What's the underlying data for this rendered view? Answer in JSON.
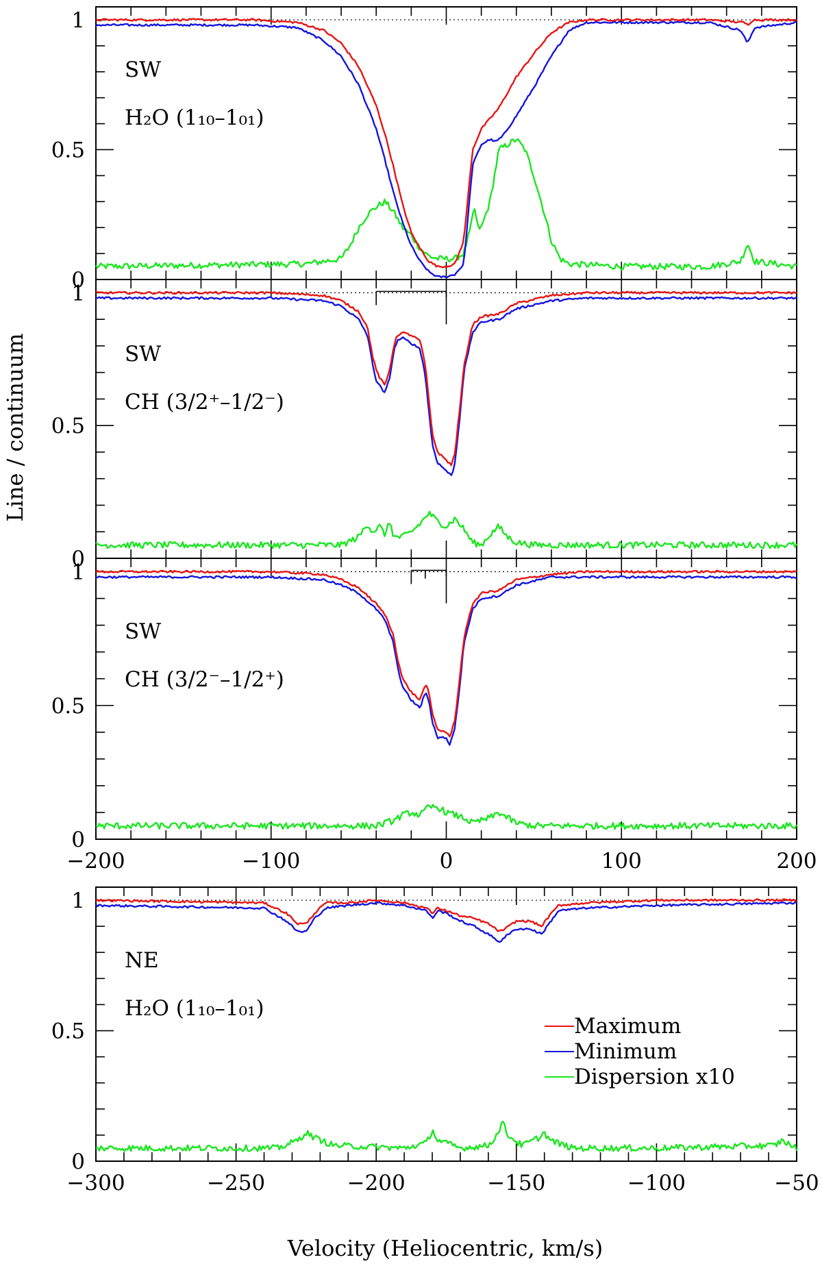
{
  "colors": {
    "maximum": "#e81414",
    "minimum": "#1414e0",
    "dispersion": "#19e61e",
    "axis": "#000000"
  },
  "y_axis_label": "Line / continuum",
  "x_axis_label": "Velocity (Heliocentric, km/s)",
  "legend": {
    "placement": "lower-right of bottom panel",
    "maximum": "Maximum",
    "minimum": "Minimum",
    "dispersion": "Dispersion x10"
  },
  "chart_data": [
    {
      "type": "line",
      "panel": "top",
      "region": "SW",
      "transition": "H₂O (1₁₀–1₀₁)",
      "xlim": [
        -200,
        200
      ],
      "ylim": [
        0,
        1.05
      ],
      "x_ticks": [
        "−200",
        "−100",
        "0",
        "100",
        "200"
      ],
      "x_tick_labels_shown": false,
      "y_ticks": [
        "0",
        "0.5",
        "1"
      ],
      "continuum_level": 1,
      "series": [
        {
          "name": "Maximum",
          "x": [
            -200,
            -110,
            -85,
            -70,
            -60,
            -50,
            -40,
            -35,
            -30,
            -25,
            -20,
            -15,
            -10,
            -5,
            0,
            5,
            10,
            15,
            20,
            30,
            40,
            50,
            60,
            70,
            80,
            100,
            150,
            170,
            172,
            175,
            200
          ],
          "y": [
            1.0,
            1.0,
            0.99,
            0.96,
            0.91,
            0.82,
            0.67,
            0.56,
            0.43,
            0.29,
            0.18,
            0.12,
            0.07,
            0.05,
            0.05,
            0.06,
            0.15,
            0.5,
            0.58,
            0.66,
            0.78,
            0.87,
            0.95,
            0.99,
            1.0,
            1.0,
            1.0,
            0.99,
            0.98,
            1.0,
            1.0
          ]
        },
        {
          "name": "Minimum",
          "x": [
            -200,
            -110,
            -85,
            -70,
            -60,
            -50,
            -40,
            -35,
            -30,
            -25,
            -20,
            -15,
            -10,
            -5,
            0,
            5,
            10,
            15,
            20,
            25,
            28,
            32,
            40,
            50,
            60,
            70,
            80,
            100,
            150,
            168,
            172,
            176,
            200
          ],
          "y": [
            0.98,
            0.98,
            0.97,
            0.92,
            0.86,
            0.75,
            0.58,
            0.46,
            0.33,
            0.22,
            0.13,
            0.07,
            0.03,
            0.01,
            0.01,
            0.02,
            0.06,
            0.44,
            0.52,
            0.54,
            0.53,
            0.55,
            0.63,
            0.74,
            0.86,
            0.96,
            0.99,
            0.99,
            0.99,
            0.96,
            0.91,
            0.97,
            0.99
          ]
        },
        {
          "name": "Dispersion x10",
          "x": [
            -200,
            -80,
            -60,
            -55,
            -50,
            -45,
            -40,
            -35,
            -30,
            -25,
            -20,
            -15,
            -10,
            -5,
            0,
            5,
            10,
            14,
            16,
            18,
            20,
            25,
            30,
            35,
            40,
            45,
            50,
            55,
            60,
            65,
            70,
            100,
            150,
            168,
            172,
            176,
            200
          ],
          "y": [
            0.05,
            0.06,
            0.08,
            0.13,
            0.2,
            0.25,
            0.28,
            0.3,
            0.26,
            0.2,
            0.17,
            0.12,
            0.09,
            0.08,
            0.08,
            0.08,
            0.1,
            0.2,
            0.28,
            0.2,
            0.2,
            0.3,
            0.5,
            0.52,
            0.54,
            0.5,
            0.4,
            0.28,
            0.15,
            0.08,
            0.06,
            0.05,
            0.05,
            0.07,
            0.14,
            0.07,
            0.05
          ]
        }
      ]
    },
    {
      "type": "line",
      "panel": "second",
      "region": "SW",
      "transition": "CH (3/2⁺–1/2⁻)",
      "xlim": [
        -200,
        200
      ],
      "ylim": [
        0,
        1.05
      ],
      "x_ticks": [
        "−200",
        "−100",
        "0",
        "100",
        "200"
      ],
      "x_tick_labels_shown": false,
      "y_ticks": [
        "0",
        "0.5",
        "1"
      ],
      "continuum_level": 1,
      "hfs_component_velocities": [
        -40,
        0
      ],
      "series": [
        {
          "name": "Maximum",
          "x": [
            -200,
            -100,
            -70,
            -60,
            -50,
            -45,
            -42,
            -40,
            -38,
            -35,
            -32,
            -30,
            -28,
            -25,
            -20,
            -15,
            -12,
            -10,
            -8,
            -5,
            0,
            3,
            5,
            8,
            10,
            15,
            20,
            30,
            40,
            60,
            80,
            100,
            200
          ],
          "y": [
            1.0,
            1.0,
            0.99,
            0.97,
            0.93,
            0.87,
            0.76,
            0.71,
            0.68,
            0.65,
            0.72,
            0.8,
            0.84,
            0.85,
            0.84,
            0.82,
            0.73,
            0.6,
            0.47,
            0.4,
            0.37,
            0.35,
            0.4,
            0.58,
            0.72,
            0.88,
            0.91,
            0.92,
            0.96,
            0.99,
            1.0,
            1.0,
            1.0
          ]
        },
        {
          "name": "Minimum",
          "x": [
            -200,
            -100,
            -70,
            -60,
            -50,
            -45,
            -42,
            -40,
            -38,
            -35,
            -32,
            -30,
            -28,
            -25,
            -20,
            -15,
            -12,
            -10,
            -8,
            -5,
            0,
            3,
            5,
            8,
            10,
            15,
            20,
            30,
            40,
            60,
            80,
            100,
            200
          ],
          "y": [
            0.98,
            0.98,
            0.97,
            0.95,
            0.9,
            0.84,
            0.73,
            0.67,
            0.65,
            0.62,
            0.69,
            0.78,
            0.82,
            0.83,
            0.81,
            0.79,
            0.69,
            0.56,
            0.43,
            0.36,
            0.33,
            0.31,
            0.36,
            0.55,
            0.7,
            0.85,
            0.89,
            0.9,
            0.94,
            0.97,
            0.98,
            0.98,
            0.98
          ]
        },
        {
          "name": "Dispersion x10",
          "x": [
            -200,
            -60,
            -50,
            -45,
            -42,
            -38,
            -35,
            -32,
            -30,
            -25,
            -20,
            -15,
            -10,
            -5,
            0,
            5,
            10,
            15,
            20,
            25,
            30,
            35,
            40,
            50,
            60,
            200
          ],
          "y": [
            0.05,
            0.05,
            0.08,
            0.13,
            0.1,
            0.12,
            0.09,
            0.14,
            0.08,
            0.08,
            0.1,
            0.13,
            0.17,
            0.14,
            0.12,
            0.15,
            0.11,
            0.06,
            0.05,
            0.09,
            0.12,
            0.08,
            0.06,
            0.05,
            0.05,
            0.05
          ]
        }
      ]
    },
    {
      "type": "line",
      "panel": "third",
      "region": "SW",
      "transition": "CH (3/2⁻–1/2⁺)",
      "xlim": [
        -200,
        200
      ],
      "ylim": [
        0,
        1.05
      ],
      "x_ticks": [
        "−200",
        "−100",
        "0",
        "100",
        "200"
      ],
      "x_tick_labels_shown": true,
      "y_ticks": [
        "0",
        "0.5",
        "1"
      ],
      "continuum_level": 1,
      "hfs_component_velocities": [
        -20,
        -12,
        0
      ],
      "series": [
        {
          "name": "Maximum",
          "x": [
            -200,
            -100,
            -70,
            -60,
            -50,
            -40,
            -35,
            -30,
            -28,
            -25,
            -20,
            -15,
            -12,
            -10,
            -8,
            -5,
            0,
            2,
            5,
            8,
            10,
            15,
            20,
            30,
            40,
            60,
            80,
            100,
            200
          ],
          "y": [
            1.0,
            1.0,
            0.99,
            0.97,
            0.94,
            0.88,
            0.84,
            0.76,
            0.68,
            0.6,
            0.55,
            0.52,
            0.58,
            0.55,
            0.47,
            0.41,
            0.4,
            0.38,
            0.45,
            0.62,
            0.75,
            0.88,
            0.92,
            0.93,
            0.97,
            0.99,
            1.0,
            1.0,
            1.0
          ]
        },
        {
          "name": "Minimum",
          "x": [
            -200,
            -100,
            -70,
            -60,
            -50,
            -40,
            -35,
            -30,
            -28,
            -25,
            -20,
            -15,
            -12,
            -10,
            -8,
            -5,
            0,
            2,
            5,
            8,
            10,
            15,
            20,
            30,
            40,
            60,
            80,
            100,
            200
          ],
          "y": [
            0.98,
            0.98,
            0.97,
            0.95,
            0.92,
            0.86,
            0.82,
            0.73,
            0.65,
            0.57,
            0.52,
            0.49,
            0.55,
            0.52,
            0.44,
            0.38,
            0.38,
            0.35,
            0.42,
            0.59,
            0.73,
            0.86,
            0.9,
            0.91,
            0.95,
            0.98,
            0.98,
            0.98,
            0.98
          ]
        },
        {
          "name": "Dispersion x10",
          "x": [
            -200,
            -40,
            -30,
            -25,
            -20,
            -15,
            -10,
            -5,
            0,
            5,
            10,
            15,
            20,
            25,
            30,
            35,
            40,
            50,
            60,
            200
          ],
          "y": [
            0.05,
            0.05,
            0.07,
            0.09,
            0.1,
            0.09,
            0.12,
            0.12,
            0.1,
            0.09,
            0.08,
            0.06,
            0.07,
            0.08,
            0.1,
            0.08,
            0.06,
            0.05,
            0.05,
            0.05
          ]
        }
      ]
    },
    {
      "type": "line",
      "panel": "bottom",
      "region": "NE",
      "transition": "H₂O (1₁₀–1₀₁)",
      "xlim": [
        -300,
        -50
      ],
      "ylim": [
        0,
        1.05
      ],
      "x_ticks": [
        "−300",
        "−250",
        "−200",
        "−150",
        "−100",
        "−50"
      ],
      "x_tick_labels_shown": true,
      "y_ticks": [
        "0",
        "0.5",
        "1"
      ],
      "continuum_level": 1,
      "series": [
        {
          "name": "Maximum",
          "x": [
            -300,
            -240,
            -232,
            -228,
            -225,
            -222,
            -218,
            -210,
            -200,
            -190,
            -182,
            -180,
            -178,
            -175,
            -170,
            -165,
            -160,
            -156,
            -154,
            -150,
            -145,
            -141,
            -139,
            -135,
            -125,
            -100,
            -50
          ],
          "y": [
            1.0,
            0.99,
            0.95,
            0.91,
            0.91,
            0.95,
            0.99,
            0.99,
            1.0,
            0.99,
            0.97,
            0.95,
            0.97,
            0.96,
            0.94,
            0.93,
            0.91,
            0.88,
            0.89,
            0.92,
            0.92,
            0.9,
            0.93,
            0.98,
            0.99,
            1.0,
            1.0
          ]
        },
        {
          "name": "Minimum",
          "x": [
            -300,
            -240,
            -232,
            -228,
            -225,
            -222,
            -218,
            -210,
            -200,
            -190,
            -182,
            -180,
            -178,
            -175,
            -170,
            -165,
            -160,
            -156,
            -154,
            -150,
            -145,
            -141,
            -139,
            -135,
            -125,
            -100,
            -50
          ],
          "y": [
            0.98,
            0.97,
            0.92,
            0.88,
            0.88,
            0.93,
            0.97,
            0.98,
            0.99,
            0.98,
            0.96,
            0.93,
            0.96,
            0.95,
            0.92,
            0.9,
            0.87,
            0.84,
            0.86,
            0.89,
            0.89,
            0.87,
            0.9,
            0.96,
            0.97,
            0.98,
            0.99
          ]
        },
        {
          "name": "Dispersion x10",
          "x": [
            -300,
            -235,
            -228,
            -225,
            -222,
            -215,
            -190,
            -182,
            -180,
            -178,
            -170,
            -160,
            -157,
            -155,
            -153,
            -148,
            -142,
            -140,
            -138,
            -130,
            -100,
            -58,
            -55,
            -52,
            -50
          ],
          "y": [
            0.05,
            0.05,
            0.08,
            0.11,
            0.09,
            0.06,
            0.05,
            0.07,
            0.12,
            0.08,
            0.05,
            0.06,
            0.1,
            0.15,
            0.1,
            0.06,
            0.09,
            0.11,
            0.08,
            0.05,
            0.05,
            0.06,
            0.08,
            0.06,
            0.05
          ]
        }
      ]
    }
  ]
}
